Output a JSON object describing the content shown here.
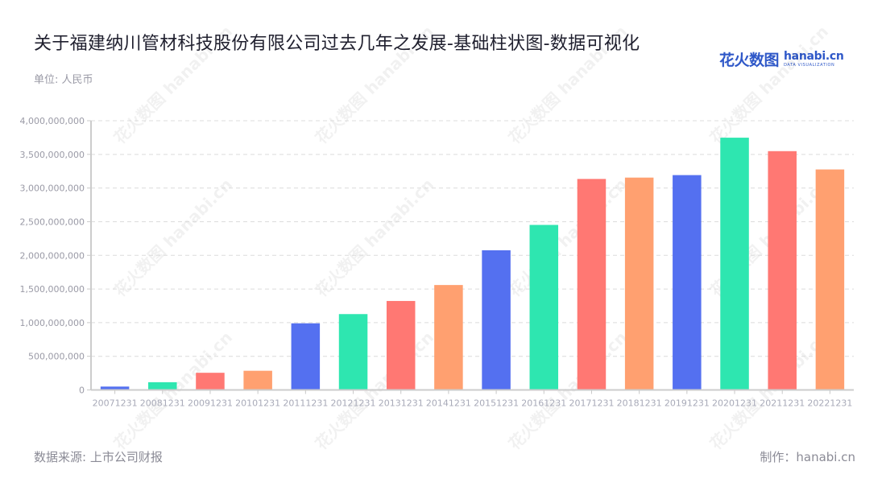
{
  "header": {
    "title": "关于福建纳川管材科技股份有限公司过去几年之发展-基础柱状图-数据可视化",
    "unit": "单位: 人民币"
  },
  "logo": {
    "cn": "花火数图",
    "en": "hanabi.cn",
    "sub": "DATA VISUALIZATION"
  },
  "footer": {
    "source": "数据来源: 上市公司财报",
    "credit": "制作：hanabi.cn"
  },
  "watermark_text": "花火数图 hanabi.cn",
  "colors": [
    "#5470f0",
    "#2ee6b0",
    "#ff7873",
    "#ffa070"
  ],
  "chart_data": {
    "type": "bar",
    "title": "关于福建纳川管材科技股份有限公司过去几年之发展-基础柱状图-数据可视化",
    "xlabel": "",
    "ylabel": "单位: 人民币",
    "ylim": [
      0,
      4000000000
    ],
    "yticks": [
      0,
      500000000,
      1000000000,
      1500000000,
      2000000000,
      2500000000,
      3000000000,
      3500000000,
      4000000000
    ],
    "ytick_labels": [
      "0",
      "500,000,000",
      "1,000,000,000",
      "1,500,000,000",
      "2,000,000,000",
      "2,500,000,000",
      "3,000,000,000",
      "3,500,000,000",
      "4,000,000,000"
    ],
    "grid": true,
    "legend": null,
    "categories": [
      "20071231",
      "20081231",
      "20091231",
      "20101231",
      "20111231",
      "20121231",
      "20131231",
      "20141231",
      "20151231",
      "20161231",
      "20171231",
      "20181231",
      "20191231",
      "20201231",
      "20211231",
      "20221231"
    ],
    "values": [
      50000000,
      115000000,
      255000000,
      285000000,
      990000000,
      1127000000,
      1322000000,
      1559000000,
      2075000000,
      2452000000,
      3135000000,
      3155000000,
      3192000000,
      3748000000,
      3548000000,
      3276000000
    ]
  }
}
